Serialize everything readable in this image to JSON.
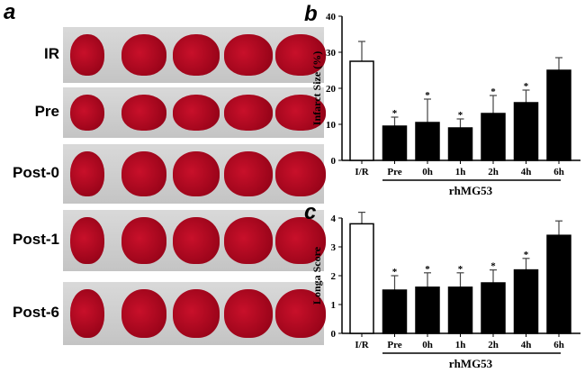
{
  "panel_a": {
    "label": "a",
    "rows": [
      "IR",
      "Pre",
      "Post-0",
      "Post-1",
      "Post-6"
    ]
  },
  "chart_data": [
    {
      "type": "bar",
      "panel": "b",
      "ylabel": "Infarct Size (%)",
      "ylim": [
        0,
        40
      ],
      "yticks": [
        0,
        10,
        20,
        30,
        40
      ],
      "categories": [
        "I/R",
        "Pre",
        "0h",
        "1h",
        "2h",
        "4h",
        "6h"
      ],
      "values": [
        27.5,
        9.5,
        10.5,
        9,
        13,
        16,
        25
      ],
      "error": [
        5.5,
        2.5,
        6.5,
        2.5,
        5,
        3.5,
        3.5
      ],
      "significant": [
        false,
        true,
        true,
        true,
        true,
        true,
        false
      ],
      "group_label": "rhMG53",
      "colors": {
        "control": "#ffffff",
        "treated": "#000000"
      }
    },
    {
      "type": "bar",
      "panel": "c",
      "ylabel": "Longa Score",
      "ylim": [
        0,
        4
      ],
      "yticks": [
        0,
        1,
        2,
        3,
        4
      ],
      "categories": [
        "I/R",
        "Pre",
        "0h",
        "1h",
        "2h",
        "4h",
        "6h"
      ],
      "values": [
        3.8,
        1.5,
        1.6,
        1.6,
        1.75,
        2.2,
        3.4
      ],
      "error": [
        0.4,
        0.5,
        0.5,
        0.5,
        0.45,
        0.4,
        0.5
      ],
      "significant": [
        false,
        true,
        true,
        true,
        true,
        true,
        false
      ],
      "group_label": "rhMG53",
      "colors": {
        "control": "#ffffff",
        "treated": "#000000"
      }
    }
  ]
}
